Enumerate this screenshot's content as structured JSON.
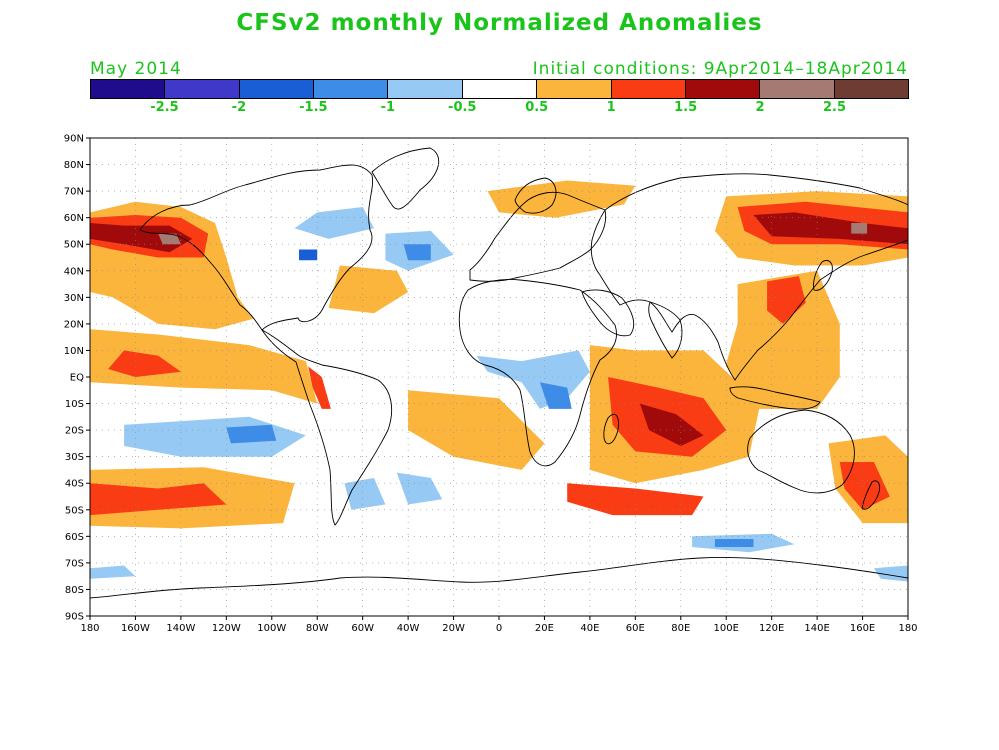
{
  "title": "CFSv2 monthly Normalized Anomalies",
  "subtitle_left": "May 2014",
  "subtitle_right": "Initial conditions: 9Apr2014–18Apr2014",
  "colorbar": {
    "colors": [
      "#1e0c8c",
      "#4038c8",
      "#1a5ed6",
      "#3c8ce8",
      "#96caf5",
      "#ffffff",
      "#fbb43c",
      "#fa3c14",
      "#a00a0a",
      "#a47a72",
      "#6e3c32"
    ],
    "labels": [
      "-2.5",
      "-2",
      "-1.5",
      "-1",
      "-0.5",
      "0.5",
      "1",
      "1.5",
      "2",
      "2.5"
    ],
    "label_positions": [
      1,
      2,
      3,
      4,
      5,
      6,
      7,
      8,
      9,
      10
    ]
  },
  "axes": {
    "lat_labels": [
      "90N",
      "80N",
      "70N",
      "60N",
      "50N",
      "40N",
      "30N",
      "20N",
      "10N",
      "EQ",
      "10S",
      "20S",
      "30S",
      "40S",
      "50S",
      "60S",
      "70S",
      "80S",
      "90S"
    ],
    "lat_values": [
      90,
      80,
      70,
      60,
      50,
      40,
      30,
      20,
      10,
      0,
      -10,
      -20,
      -30,
      -40,
      -50,
      -60,
      -70,
      -80,
      -90
    ],
    "lon_labels": [
      "180",
      "160W",
      "140W",
      "120W",
      "100W",
      "80W",
      "60W",
      "40W",
      "20W",
      "0",
      "20E",
      "40E",
      "60E",
      "80E",
      "100E",
      "120E",
      "140E",
      "160E",
      "180"
    ],
    "lon_values": [
      -180,
      -160,
      -140,
      -120,
      -100,
      -80,
      -60,
      -40,
      -20,
      0,
      20,
      40,
      60,
      80,
      100,
      120,
      140,
      160,
      180
    ],
    "lon_range": [
      -180,
      180
    ],
    "lat_range": [
      -90,
      90
    ],
    "grid": "dotted"
  },
  "anomaly_regions": [
    {
      "name": "north-pacific-warm",
      "color": "#fbb43c",
      "pts": [
        [
          -180,
          62
        ],
        [
          -160,
          66
        ],
        [
          -140,
          64
        ],
        [
          -125,
          58
        ],
        [
          -120,
          45
        ],
        [
          -115,
          30
        ],
        [
          -108,
          22
        ],
        [
          -125,
          18
        ],
        [
          -150,
          20
        ],
        [
          -170,
          30
        ],
        [
          -180,
          32
        ]
      ]
    },
    {
      "name": "north-pacific-hot",
      "color": "#fa3c14",
      "pts": [
        [
          -180,
          60
        ],
        [
          -160,
          61
        ],
        [
          -140,
          60
        ],
        [
          -128,
          54
        ],
        [
          -130,
          45
        ],
        [
          -150,
          45
        ],
        [
          -170,
          48
        ],
        [
          -180,
          50
        ]
      ]
    },
    {
      "name": "north-pacific-core",
      "color": "#a00a0a",
      "pts": [
        [
          -180,
          58
        ],
        [
          -165,
          57
        ],
        [
          -145,
          57
        ],
        [
          -135,
          52
        ],
        [
          -145,
          47
        ],
        [
          -165,
          50
        ],
        [
          -180,
          52
        ]
      ]
    },
    {
      "name": "north-pacific-peak",
      "color": "#a47a72",
      "pts": [
        [
          -150,
          54
        ],
        [
          -142,
          54
        ],
        [
          -140,
          50
        ],
        [
          -148,
          50
        ]
      ]
    },
    {
      "name": "tropical-pacific-warm",
      "color": "#fbb43c",
      "pts": [
        [
          -180,
          18
        ],
        [
          -150,
          16
        ],
        [
          -110,
          12
        ],
        [
          -85,
          6
        ],
        [
          -80,
          -10
        ],
        [
          -100,
          -5
        ],
        [
          -140,
          -4
        ],
        [
          -180,
          -2
        ]
      ]
    },
    {
      "name": "tropical-pacific-hot",
      "color": "#fa3c14",
      "pts": [
        [
          -165,
          10
        ],
        [
          -150,
          8
        ],
        [
          -140,
          2
        ],
        [
          -160,
          0
        ],
        [
          -172,
          3
        ]
      ]
    },
    {
      "name": "peru-coast-hot",
      "color": "#fa3c14",
      "pts": [
        [
          -84,
          4
        ],
        [
          -78,
          0
        ],
        [
          -74,
          -12
        ],
        [
          -78,
          -12
        ],
        [
          -82,
          -4
        ]
      ]
    },
    {
      "name": "south-pacific-cool",
      "color": "#96caf5",
      "pts": [
        [
          -165,
          -18
        ],
        [
          -110,
          -15
        ],
        [
          -85,
          -22
        ],
        [
          -100,
          -30
        ],
        [
          -140,
          -30
        ],
        [
          -165,
          -26
        ]
      ]
    },
    {
      "name": "south-pacific-cold",
      "color": "#3c8ce8",
      "pts": [
        [
          -120,
          -19
        ],
        [
          -100,
          -18
        ],
        [
          -98,
          -24
        ],
        [
          -118,
          -25
        ]
      ]
    },
    {
      "name": "southern-pacific-warm",
      "color": "#fbb43c",
      "pts": [
        [
          -180,
          -35
        ],
        [
          -130,
          -34
        ],
        [
          -90,
          -40
        ],
        [
          -95,
          -55
        ],
        [
          -140,
          -57
        ],
        [
          -180,
          -56
        ]
      ]
    },
    {
      "name": "southern-pacific-hot",
      "color": "#fa3c14",
      "pts": [
        [
          -180,
          -40
        ],
        [
          -150,
          -42
        ],
        [
          -130,
          -40
        ],
        [
          -120,
          -48
        ],
        [
          -150,
          -50
        ],
        [
          -180,
          -52
        ]
      ]
    },
    {
      "name": "north-atlantic-cool",
      "color": "#96caf5",
      "pts": [
        [
          -50,
          54
        ],
        [
          -30,
          55
        ],
        [
          -20,
          46
        ],
        [
          -40,
          40
        ],
        [
          -50,
          44
        ]
      ]
    },
    {
      "name": "north-atlantic-cold",
      "color": "#3c8ce8",
      "pts": [
        [
          -42,
          50
        ],
        [
          -30,
          50
        ],
        [
          -30,
          44
        ],
        [
          -40,
          44
        ]
      ]
    },
    {
      "name": "atlantic-warm",
      "color": "#fbb43c",
      "pts": [
        [
          -70,
          42
        ],
        [
          -45,
          40
        ],
        [
          -40,
          32
        ],
        [
          -55,
          24
        ],
        [
          -75,
          26
        ]
      ]
    },
    {
      "name": "indian-ocean-warm",
      "color": "#fbb43c",
      "pts": [
        [
          40,
          12
        ],
        [
          60,
          10
        ],
        [
          90,
          10
        ],
        [
          115,
          -10
        ],
        [
          110,
          -30
        ],
        [
          90,
          -35
        ],
        [
          60,
          -40
        ],
        [
          40,
          -35
        ],
        [
          40,
          -10
        ]
      ]
    },
    {
      "name": "indian-ocean-hot",
      "color": "#fa3c14",
      "pts": [
        [
          48,
          0
        ],
        [
          70,
          -4
        ],
        [
          90,
          -8
        ],
        [
          100,
          -20
        ],
        [
          85,
          -30
        ],
        [
          60,
          -28
        ],
        [
          50,
          -18
        ]
      ]
    },
    {
      "name": "indian-ocean-core",
      "color": "#a00a0a",
      "pts": [
        [
          62,
          -10
        ],
        [
          78,
          -14
        ],
        [
          90,
          -22
        ],
        [
          80,
          -26
        ],
        [
          66,
          -20
        ]
      ]
    },
    {
      "name": "southern-indian-hot",
      "color": "#fa3c14",
      "pts": [
        [
          30,
          -40
        ],
        [
          60,
          -42
        ],
        [
          90,
          -45
        ],
        [
          85,
          -52
        ],
        [
          50,
          -52
        ],
        [
          30,
          -47
        ]
      ]
    },
    {
      "name": "siberia-warm",
      "color": "#fbb43c",
      "pts": [
        [
          100,
          68
        ],
        [
          140,
          70
        ],
        [
          180,
          68
        ],
        [
          180,
          45
        ],
        [
          160,
          42
        ],
        [
          130,
          42
        ],
        [
          105,
          45
        ],
        [
          95,
          55
        ]
      ]
    },
    {
      "name": "siberia-hot",
      "color": "#fa3c14",
      "pts": [
        [
          105,
          64
        ],
        [
          135,
          66
        ],
        [
          180,
          62
        ],
        [
          180,
          48
        ],
        [
          150,
          50
        ],
        [
          120,
          50
        ],
        [
          108,
          55
        ]
      ]
    },
    {
      "name": "siberia-core",
      "color": "#a00a0a",
      "pts": [
        [
          112,
          61
        ],
        [
          130,
          62
        ],
        [
          160,
          58
        ],
        [
          180,
          56
        ],
        [
          180,
          50
        ],
        [
          150,
          52
        ],
        [
          120,
          53
        ]
      ]
    },
    {
      "name": "siberia-peak",
      "color": "#a47a72",
      "pts": [
        [
          155,
          58
        ],
        [
          162,
          58
        ],
        [
          162,
          54
        ],
        [
          155,
          54
        ]
      ]
    },
    {
      "name": "west-pacific-warm",
      "color": "#fbb43c",
      "pts": [
        [
          105,
          35
        ],
        [
          140,
          40
        ],
        [
          150,
          20
        ],
        [
          150,
          0
        ],
        [
          140,
          -12
        ],
        [
          110,
          -12
        ],
        [
          100,
          5
        ],
        [
          105,
          20
        ]
      ]
    },
    {
      "name": "west-pacific-hot",
      "color": "#fa3c14",
      "pts": [
        [
          118,
          36
        ],
        [
          132,
          38
        ],
        [
          135,
          28
        ],
        [
          125,
          20
        ],
        [
          118,
          25
        ]
      ]
    },
    {
      "name": "australia-east-warm",
      "color": "#fbb43c",
      "pts": [
        [
          145,
          -25
        ],
        [
          170,
          -22
        ],
        [
          180,
          -30
        ],
        [
          180,
          -55
        ],
        [
          160,
          -55
        ],
        [
          148,
          -42
        ]
      ]
    },
    {
      "name": "australia-east-hot",
      "color": "#fa3c14",
      "pts": [
        [
          150,
          -32
        ],
        [
          165,
          -32
        ],
        [
          172,
          -45
        ],
        [
          160,
          -50
        ],
        [
          152,
          -42
        ]
      ]
    },
    {
      "name": "antarctic-cool",
      "color": "#96caf5",
      "pts": [
        [
          85,
          -60
        ],
        [
          120,
          -59
        ],
        [
          130,
          -63
        ],
        [
          110,
          -66
        ],
        [
          85,
          -64
        ]
      ]
    },
    {
      "name": "antarctic-cold",
      "color": "#3c8ce8",
      "pts": [
        [
          95,
          -61
        ],
        [
          112,
          -61
        ],
        [
          112,
          -64
        ],
        [
          95,
          -64
        ]
      ]
    },
    {
      "name": "west-africa-cool",
      "color": "#96caf5",
      "pts": [
        [
          -10,
          8
        ],
        [
          10,
          6
        ],
        [
          35,
          10
        ],
        [
          40,
          2
        ],
        [
          30,
          -8
        ],
        [
          18,
          -12
        ],
        [
          10,
          -2
        ],
        [
          -5,
          2
        ]
      ]
    },
    {
      "name": "central-africa-cold",
      "color": "#3c8ce8",
      "pts": [
        [
          18,
          -2
        ],
        [
          30,
          -4
        ],
        [
          32,
          -12
        ],
        [
          22,
          -12
        ]
      ]
    },
    {
      "name": "south-america-cool",
      "color": "#96caf5",
      "pts": [
        [
          -68,
          -40
        ],
        [
          -55,
          -38
        ],
        [
          -50,
          -48
        ],
        [
          -65,
          -50
        ]
      ]
    },
    {
      "name": "south-atlantic-warm",
      "color": "#fbb43c",
      "pts": [
        [
          -40,
          -5
        ],
        [
          0,
          -8
        ],
        [
          20,
          -25
        ],
        [
          10,
          -35
        ],
        [
          -20,
          -30
        ],
        [
          -40,
          -20
        ]
      ]
    },
    {
      "name": "arctic-europe-warm",
      "color": "#fbb43c",
      "pts": [
        [
          -5,
          70
        ],
        [
          30,
          74
        ],
        [
          60,
          72
        ],
        [
          55,
          65
        ],
        [
          25,
          60
        ],
        [
          0,
          62
        ]
      ]
    },
    {
      "name": "arctic-cool",
      "color": "#96caf5",
      "pts": [
        [
          -80,
          62
        ],
        [
          -60,
          64
        ],
        [
          -55,
          56
        ],
        [
          -75,
          52
        ],
        [
          -90,
          56
        ]
      ]
    },
    {
      "name": "hudson-bay-cold",
      "color": "#1a5ed6",
      "pts": [
        [
          -88,
          48
        ],
        [
          -80,
          48
        ],
        [
          -80,
          44
        ],
        [
          -88,
          44
        ]
      ]
    },
    {
      "name": "south-atlantic-south-cool",
      "color": "#96caf5",
      "pts": [
        [
          -45,
          -36
        ],
        [
          -30,
          -38
        ],
        [
          -25,
          -46
        ],
        [
          -40,
          -48
        ]
      ]
    },
    {
      "name": "antarctic-coast-cool-west",
      "color": "#96caf5",
      "pts": [
        [
          -180,
          -72
        ],
        [
          -165,
          -71
        ],
        [
          -160,
          -75
        ],
        [
          -180,
          -76
        ]
      ]
    },
    {
      "name": "antarctic-coast-cool-east",
      "color": "#96caf5",
      "pts": [
        [
          165,
          -72
        ],
        [
          180,
          -71
        ],
        [
          180,
          -77
        ],
        [
          168,
          -76
        ]
      ]
    }
  ]
}
